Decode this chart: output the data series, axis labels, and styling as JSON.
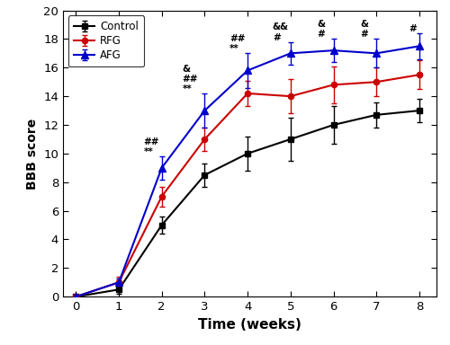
{
  "weeks": [
    0,
    1,
    2,
    3,
    4,
    5,
    6,
    7,
    8
  ],
  "control_mean": [
    0,
    0.5,
    5.0,
    8.5,
    10.0,
    11.0,
    12.0,
    12.7,
    13.0
  ],
  "rfg_mean": [
    0,
    1.0,
    7.0,
    11.0,
    14.2,
    14.0,
    14.8,
    15.0,
    15.5
  ],
  "afg_mean": [
    0,
    1.0,
    9.0,
    13.0,
    15.8,
    17.0,
    17.2,
    17.0,
    17.5
  ],
  "control_err": [
    0,
    0.3,
    0.6,
    0.8,
    1.2,
    1.5,
    1.3,
    0.9,
    0.8
  ],
  "rfg_err": [
    0,
    0.4,
    0.7,
    0.8,
    0.9,
    1.2,
    1.3,
    1.0,
    1.0
  ],
  "afg_err": [
    0,
    0.3,
    0.8,
    1.2,
    1.2,
    0.8,
    0.8,
    1.0,
    0.9
  ],
  "control_color": "#000000",
  "rfg_color": "#cc0000",
  "afg_color": "#0000cc",
  "xlabel": "Time (weeks)",
  "ylabel": "BBB score",
  "ylim": [
    0,
    20
  ],
  "yticks": [
    0,
    2,
    4,
    6,
    8,
    10,
    12,
    14,
    16,
    18,
    20
  ],
  "xticks": [
    0,
    1,
    2,
    3,
    4,
    5,
    6,
    7,
    8
  ],
  "legend_labels": [
    "Control",
    "RFG",
    "AFG"
  ],
  "ann_week": [
    2,
    3,
    4,
    5,
    6,
    7,
    8
  ],
  "ann_text": [
    "##\n**",
    "&\n##\n**",
    "##\n**",
    "&&\n#",
    "&\n#",
    "&\n#",
    "#"
  ],
  "ann_xoff": [
    -0.42,
    -0.52,
    -0.42,
    -0.42,
    -0.38,
    -0.38,
    -0.25
  ],
  "ann_ybase": [
    9.8,
    14.2,
    17.0,
    17.8,
    18.0,
    18.0,
    18.4
  ]
}
